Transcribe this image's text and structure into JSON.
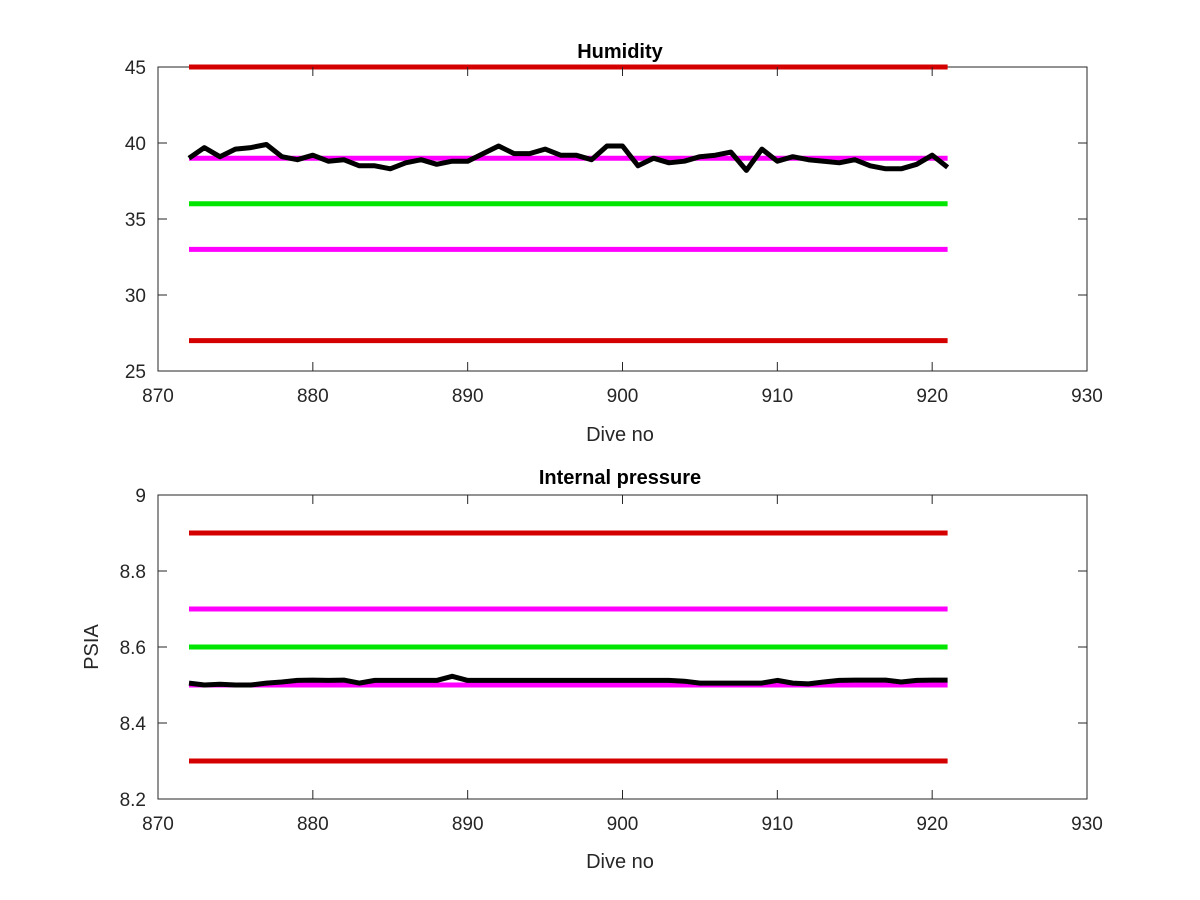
{
  "chart_data": [
    {
      "type": "line",
      "title": "Humidity",
      "xlabel": "Dive no",
      "ylabel": "",
      "xlim": [
        870,
        930
      ],
      "ylim": [
        25,
        45
      ],
      "xticks": [
        "870",
        "880",
        "890",
        "900",
        "910",
        "920",
        "930"
      ],
      "yticks": [
        "25",
        "30",
        "35",
        "40",
        "45"
      ],
      "grid": false,
      "series": [
        {
          "color": "#d40000",
          "x": [
            872,
            921
          ],
          "values": [
            45,
            45
          ]
        },
        {
          "color": "#ff00ff",
          "x": [
            872,
            921
          ],
          "values": [
            39,
            39
          ]
        },
        {
          "color": "#00e600",
          "x": [
            872,
            921
          ],
          "values": [
            36,
            36
          ]
        },
        {
          "color": "#ff00ff",
          "x": [
            872,
            921
          ],
          "values": [
            33,
            33
          ]
        },
        {
          "color": "#d40000",
          "x": [
            872,
            921
          ],
          "values": [
            27,
            27
          ]
        },
        {
          "color": "#000000",
          "x": [
            872,
            873,
            874,
            875,
            876,
            877,
            878,
            879,
            880,
            881,
            882,
            883,
            884,
            885,
            886,
            887,
            888,
            889,
            890,
            891,
            892,
            893,
            894,
            895,
            896,
            897,
            898,
            899,
            900,
            901,
            902,
            903,
            904,
            905,
            906,
            907,
            908,
            909,
            910,
            911,
            912,
            913,
            914,
            915,
            916,
            917,
            918,
            919,
            920,
            921
          ],
          "values": [
            39.0,
            39.7,
            39.1,
            39.6,
            39.7,
            39.9,
            39.1,
            38.9,
            39.2,
            38.8,
            38.9,
            38.5,
            38.5,
            38.3,
            38.7,
            38.9,
            38.6,
            38.8,
            38.8,
            39.3,
            39.8,
            39.3,
            39.3,
            39.6,
            39.2,
            39.2,
            38.9,
            39.8,
            39.8,
            38.5,
            39.0,
            38.7,
            38.8,
            39.1,
            39.2,
            39.4,
            38.2,
            39.6,
            38.8,
            39.1,
            38.9,
            38.8,
            38.7,
            38.9,
            38.5,
            38.3,
            38.3,
            38.6,
            39.2,
            38.4
          ]
        }
      ]
    },
    {
      "type": "line",
      "title": "Internal pressure",
      "xlabel": "Dive no",
      "ylabel": "PSIA",
      "xlim": [
        870,
        930
      ],
      "ylim": [
        8.2,
        9.0
      ],
      "xticks": [
        "870",
        "880",
        "890",
        "900",
        "910",
        "920",
        "930"
      ],
      "yticks": [
        "8.2",
        "8.4",
        "8.6",
        "8.8",
        "9"
      ],
      "grid": false,
      "series": [
        {
          "color": "#d40000",
          "x": [
            872,
            921
          ],
          "values": [
            8.9,
            8.9
          ]
        },
        {
          "color": "#ff00ff",
          "x": [
            872,
            921
          ],
          "values": [
            8.7,
            8.7
          ]
        },
        {
          "color": "#00e600",
          "x": [
            872,
            921
          ],
          "values": [
            8.6,
            8.6
          ]
        },
        {
          "color": "#ff00ff",
          "x": [
            872,
            921
          ],
          "values": [
            8.5,
            8.5
          ]
        },
        {
          "color": "#d40000",
          "x": [
            872,
            921
          ],
          "values": [
            8.3,
            8.3
          ]
        },
        {
          "color": "#000000",
          "x": [
            872,
            873,
            874,
            875,
            876,
            877,
            878,
            879,
            880,
            881,
            882,
            883,
            884,
            885,
            886,
            887,
            888,
            889,
            890,
            891,
            892,
            893,
            894,
            895,
            896,
            897,
            898,
            899,
            900,
            901,
            902,
            903,
            904,
            905,
            906,
            907,
            908,
            909,
            910,
            911,
            912,
            913,
            914,
            915,
            916,
            917,
            918,
            919,
            920,
            921
          ],
          "values": [
            8.505,
            8.5,
            8.502,
            8.5,
            8.5,
            8.505,
            8.508,
            8.512,
            8.513,
            8.512,
            8.513,
            8.505,
            8.512,
            8.512,
            8.512,
            8.512,
            8.512,
            8.523,
            8.512,
            8.512,
            8.512,
            8.512,
            8.512,
            8.512,
            8.512,
            8.512,
            8.512,
            8.512,
            8.512,
            8.512,
            8.512,
            8.512,
            8.51,
            8.505,
            8.505,
            8.505,
            8.505,
            8.505,
            8.512,
            8.505,
            8.503,
            8.508,
            8.512,
            8.513,
            8.513,
            8.513,
            8.508,
            8.512,
            8.513,
            8.513
          ]
        }
      ]
    }
  ]
}
